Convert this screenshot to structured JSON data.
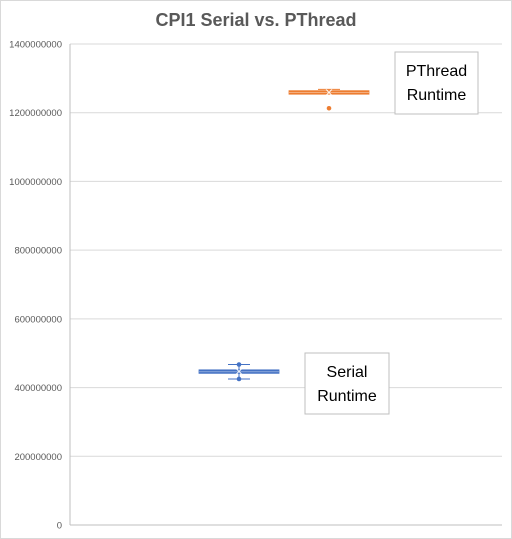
{
  "chart_data": {
    "type": "box",
    "title": "CPI1 Serial vs. PThread",
    "xlabel": "",
    "ylabel": "",
    "ylim": [
      0,
      1400000000
    ],
    "yticks": [
      0,
      200000000,
      400000000,
      600000000,
      800000000,
      1000000000,
      1200000000,
      1400000000
    ],
    "grid": true,
    "series": [
      {
        "color": "#4472C4",
        "min": 425000000,
        "q1": 443000000,
        "median": 446000000,
        "q3": 450000000,
        "max": 467000000,
        "mean": 447000000,
        "outliers": [
          425000000,
          467000000
        ]
      },
      {
        "color": "#ED7D31",
        "min": 1255000000,
        "q1": 1257000000,
        "median": 1259000000,
        "q3": 1261000000,
        "max": 1268000000,
        "mean": 1259000000,
        "outliers": [
          1213000000
        ]
      }
    ],
    "annotations": [
      {
        "lines": [
          "PThread",
          "Runtime"
        ]
      },
      {
        "lines": [
          "Serial",
          "Runtime"
        ]
      }
    ]
  }
}
